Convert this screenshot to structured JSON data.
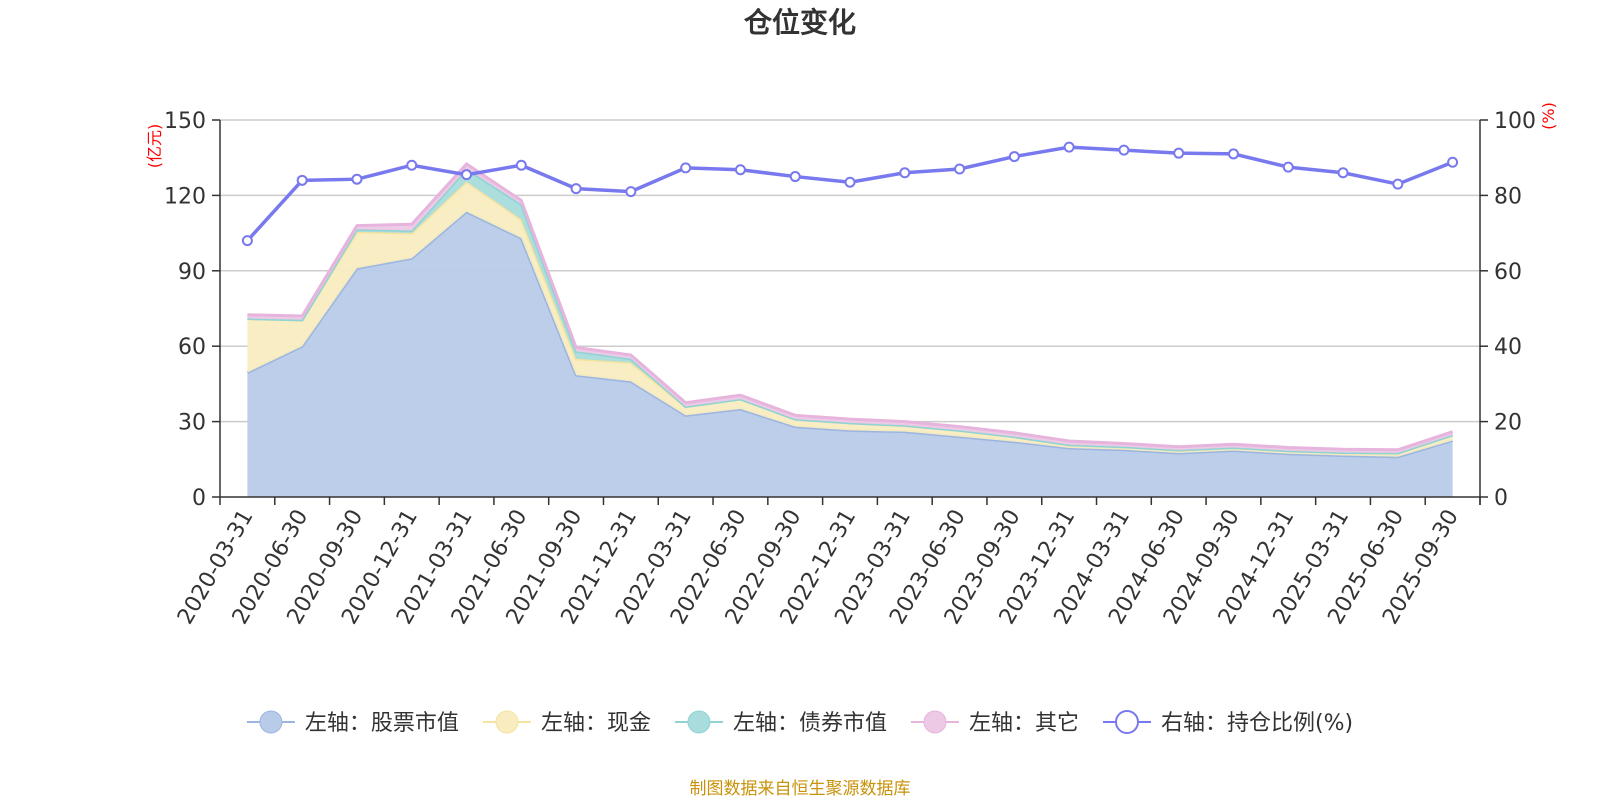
{
  "chart_data": {
    "type": "area",
    "title": "仓位变化",
    "source_note": "制图数据来自恒生聚源数据库",
    "left_axis": {
      "unit": "(亿元)",
      "ylim": [
        0,
        150
      ],
      "ticks": [
        0,
        30,
        60,
        90,
        120,
        150
      ]
    },
    "right_axis": {
      "unit": "(%)",
      "ylim": [
        0,
        100
      ],
      "ticks": [
        0,
        20,
        40,
        60,
        80,
        100
      ]
    },
    "categories": [
      "2020-03-31",
      "2020-06-30",
      "2020-09-30",
      "2020-12-31",
      "2021-03-31",
      "2021-06-30",
      "2021-09-30",
      "2021-12-31",
      "2022-03-31",
      "2022-06-30",
      "2022-09-30",
      "2022-12-31",
      "2023-03-31",
      "2023-06-30",
      "2023-09-30",
      "2023-12-31",
      "2024-03-31",
      "2024-06-30",
      "2024-09-30",
      "2024-12-31",
      "2025-03-31",
      "2025-06-30",
      "2025-09-30"
    ],
    "series": [
      {
        "name": "左轴：股票市值",
        "axis": "left",
        "stack": true,
        "color": "#9bb5e0",
        "fill": "#b8cbe9",
        "values": [
          49.5,
          60,
          91,
          95,
          113.5,
          103,
          48.5,
          46,
          32.5,
          35,
          28,
          26.5,
          26,
          24,
          22,
          19.5,
          18.8,
          17.5,
          18.5,
          17.2,
          16.5,
          16,
          22.5
        ]
      },
      {
        "name": "左轴：现金",
        "axis": "left",
        "stack": true,
        "color": "#f5e3a0",
        "fill": "#f8ecc0",
        "values": [
          21.5,
          10.5,
          14.5,
          10,
          12,
          7.5,
          6.5,
          7.5,
          3.5,
          4,
          3,
          3,
          2.5,
          2.5,
          2,
          1.3,
          1.2,
          1.2,
          1.2,
          1.2,
          1.2,
          1.5,
          2.2
        ]
      },
      {
        "name": "左轴：债券市值",
        "axis": "left",
        "stack": true,
        "color": "#8fd3d3",
        "fill": "#a9dcdc",
        "values": [
          0,
          0,
          1,
          1,
          5,
          6,
          3,
          1.5,
          0,
          0,
          0,
          0,
          0,
          0,
          0,
          0,
          0,
          0,
          0,
          0,
          0,
          0,
          0
        ]
      },
      {
        "name": "左轴：其它",
        "axis": "left",
        "stack": true,
        "color": "#e6b4dc",
        "fill": "#eec9e6",
        "values": [
          1.5,
          1.5,
          1.5,
          2.5,
          2,
          1.5,
          1.5,
          1.5,
          1.5,
          1.5,
          1.5,
          1.5,
          1.5,
          1.5,
          1.5,
          1.5,
          1.3,
          1.3,
          1.3,
          1.3,
          1.3,
          1.3,
          1.3
        ]
      },
      {
        "name": "右轴：持仓比例(%)",
        "axis": "right",
        "stack": false,
        "color": "#7879ee",
        "values": [
          68,
          84,
          84.3,
          88,
          85.5,
          88,
          81.8,
          81,
          87.3,
          86.8,
          85,
          83.5,
          86,
          87,
          90.3,
          92.8,
          92,
          91.2,
          91,
          87.5,
          86,
          83,
          88.8
        ]
      }
    ]
  }
}
